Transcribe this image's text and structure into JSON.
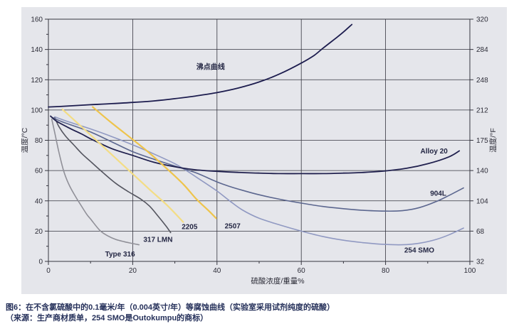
{
  "figure": {
    "caption_line1": "图6：在不含氯硫酸中的0.1毫米/年（0.004英寸/年）等腐蚀曲线（实验室采用试剂纯度的硫酸）",
    "caption_line2": "（来源：生产商材质单，254 SMO是Outokumpu的商标）"
  },
  "chart_data": {
    "type": "line",
    "title": "",
    "xlabel": "硫酸浓度/重量%",
    "ylabel_left": "温度/°C",
    "ylabel_right": "温度/°F",
    "xlim": [
      0,
      100
    ],
    "ylim": [
      0,
      160
    ],
    "grid": true,
    "background": "#e5e6eb",
    "grid_color": "#35353f",
    "x_ticks": [
      0,
      20,
      40,
      60,
      80,
      100
    ],
    "x_minor_ticks": [
      10,
      30,
      50,
      70,
      90
    ],
    "y_ticks_c": [
      0,
      20,
      40,
      60,
      80,
      100,
      120,
      140,
      160
    ],
    "y_minor_ticks_c": [
      10,
      30,
      50,
      70,
      90,
      110,
      130,
      150
    ],
    "y_ticks_f_labels": [
      "32",
      "68",
      "104",
      "140",
      "175",
      "212",
      "248",
      "284",
      "320"
    ],
    "series": [
      {
        "name": "type-316",
        "label": "Type 316",
        "color": "#909098",
        "width": 1.6,
        "label_pos": [
          17,
          5
        ],
        "points": [
          [
            0.8,
            94
          ],
          [
            1.5,
            85
          ],
          [
            2.5,
            72
          ],
          [
            3.7,
            59
          ],
          [
            5,
            50
          ],
          [
            6.5,
            42.5
          ],
          [
            7.4,
            38.5
          ],
          [
            9,
            31.5
          ],
          [
            10,
            28
          ],
          [
            12.2,
            20.5
          ],
          [
            14,
            17
          ],
          [
            16,
            14.5
          ],
          [
            18,
            13
          ],
          [
            20,
            11.8
          ],
          [
            21.5,
            11
          ]
        ]
      },
      {
        "name": "317-lmn",
        "label": "317 LMN",
        "color": "#54555f",
        "width": 1.6,
        "label_pos": [
          26,
          14.5
        ],
        "points": [
          [
            1.5,
            95
          ],
          [
            2.5,
            89
          ],
          [
            4,
            83
          ],
          [
            6,
            77
          ],
          [
            8,
            71
          ],
          [
            10,
            66
          ],
          [
            13,
            58.5
          ],
          [
            16,
            51.5
          ],
          [
            19,
            46
          ],
          [
            22,
            41
          ],
          [
            24,
            36.5
          ],
          [
            26,
            30
          ],
          [
            28,
            23
          ],
          [
            29,
            19
          ]
        ]
      },
      {
        "name": "254-smo",
        "label": "254 SMO",
        "color": "#9099c2",
        "width": 1.6,
        "label_pos": [
          88,
          7.5
        ],
        "points": [
          [
            1.5,
            95.5
          ],
          [
            5,
            92
          ],
          [
            10,
            87.5
          ],
          [
            15,
            82.5
          ],
          [
            20,
            77
          ],
          [
            25,
            71
          ],
          [
            30,
            64.5
          ],
          [
            33,
            59.5
          ],
          [
            36,
            54
          ],
          [
            40,
            46.5
          ],
          [
            43,
            40
          ],
          [
            46,
            34
          ],
          [
            50,
            28.5
          ],
          [
            55,
            24
          ],
          [
            60,
            20
          ],
          [
            65,
            16.5
          ],
          [
            70,
            14
          ],
          [
            75,
            12.3
          ],
          [
            80,
            11.2
          ],
          [
            84,
            11
          ],
          [
            88,
            12
          ],
          [
            92,
            14.5
          ],
          [
            95,
            17.5
          ],
          [
            98.5,
            22
          ]
        ]
      },
      {
        "name": "904l",
        "label": "904L",
        "color": "#5c678f",
        "width": 1.6,
        "label_pos": [
          92.5,
          45
        ],
        "points": [
          [
            1,
            95
          ],
          [
            3,
            92.5
          ],
          [
            5,
            90.5
          ],
          [
            10,
            85.5
          ],
          [
            15,
            79
          ],
          [
            20,
            72.5
          ],
          [
            25,
            67.5
          ],
          [
            30,
            63
          ],
          [
            35,
            58.5
          ],
          [
            40,
            52.5
          ],
          [
            43,
            49.5
          ],
          [
            46,
            47
          ],
          [
            50,
            44
          ],
          [
            55,
            41
          ],
          [
            60,
            38.5
          ],
          [
            65,
            36.3
          ],
          [
            70,
            34.8
          ],
          [
            75,
            33.7
          ],
          [
            80,
            33.2
          ],
          [
            84,
            33.5
          ],
          [
            88,
            35.5
          ],
          [
            92,
            39.5
          ],
          [
            95,
            43.5
          ],
          [
            98.5,
            48.5
          ]
        ]
      },
      {
        "name": "alloy-20",
        "label": "Alloy 20",
        "color": "#20204e",
        "width": 1.8,
        "label_pos": [
          91.5,
          73
        ],
        "points": [
          [
            0.5,
            96
          ],
          [
            2,
            92.5
          ],
          [
            5,
            88
          ],
          [
            8,
            84
          ],
          [
            10,
            81
          ],
          [
            15,
            74.5
          ],
          [
            20,
            70
          ],
          [
            25,
            65.5
          ],
          [
            30,
            62.5
          ],
          [
            35,
            60.5
          ],
          [
            40,
            59.5
          ],
          [
            45,
            58.8
          ],
          [
            50,
            58.3
          ],
          [
            55,
            58
          ],
          [
            60,
            58
          ],
          [
            65,
            58
          ],
          [
            70,
            58.3
          ],
          [
            75,
            58.8
          ],
          [
            80,
            59.8
          ],
          [
            85,
            61.5
          ],
          [
            90,
            64.5
          ],
          [
            95,
            69
          ],
          [
            97.5,
            73
          ]
        ]
      },
      {
        "name": "2205",
        "label": "2205",
        "color": "#f3dd85",
        "width": 2.2,
        "label_pos": [
          33.5,
          23
        ],
        "points": [
          [
            3.3,
            100.5
          ],
          [
            10,
            83.5
          ],
          [
            17,
            65.5
          ],
          [
            24,
            47.5
          ],
          [
            28,
            37.5
          ],
          [
            32,
            26
          ]
        ]
      },
      {
        "name": "2507",
        "label": "2507",
        "color": "#eec44c",
        "width": 2.2,
        "label_pos": [
          43.7,
          23.5
        ],
        "points": [
          [
            10.5,
            102
          ],
          [
            15,
            91.5
          ],
          [
            20,
            80.5
          ],
          [
            24,
            71.5
          ],
          [
            28,
            61.5
          ],
          [
            32,
            51
          ],
          [
            35,
            41.5
          ],
          [
            38,
            33.5
          ],
          [
            39.8,
            28.5
          ]
        ]
      },
      {
        "name": "boiling-point-curve",
        "label": "沸点曲线",
        "color": "#1c1c4e",
        "width": 1.8,
        "label_pos": [
          38.5,
          128.5
        ],
        "points": [
          [
            0,
            102
          ],
          [
            5,
            102.7
          ],
          [
            10,
            103.5
          ],
          [
            15,
            104.2
          ],
          [
            20,
            105
          ],
          [
            25,
            106
          ],
          [
            30,
            107.5
          ],
          [
            35,
            109.3
          ],
          [
            40,
            111.5
          ],
          [
            45,
            114.5
          ],
          [
            50,
            118.5
          ],
          [
            55,
            124
          ],
          [
            60,
            131
          ],
          [
            63,
            136
          ],
          [
            65,
            140.5
          ],
          [
            68,
            147
          ],
          [
            70,
            151.5
          ],
          [
            72,
            156.5
          ]
        ]
      }
    ]
  }
}
